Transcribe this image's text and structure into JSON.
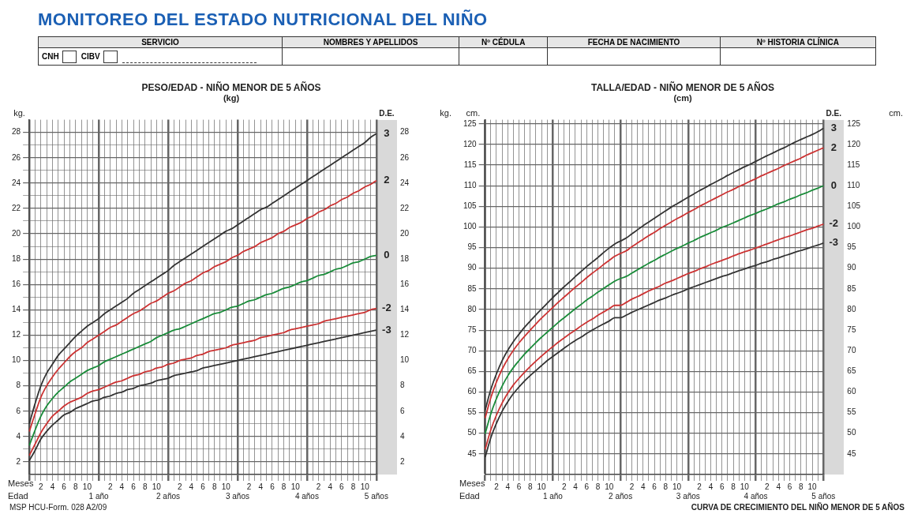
{
  "chart_data": [
    {
      "type": "other",
      "title": "MONITOREO DEL ESTADO NUTRICIONAL DEL NIÑO",
      "annotations": [
        "SERVICIO",
        "CNH",
        "CIBV",
        "NOMBRES Y APELLIDOS",
        "Nº CÉDULA",
        "FECHA DE NACIMIENTO",
        "Nº HISTORIA CLÍNICA"
      ]
    },
    {
      "type": "line",
      "title": "PESO/EDAD - NIÑO MENOR DE 5 AÑOS",
      "subtitle": "(kg)",
      "ylabel": "kg.",
      "y2label": "kg.",
      "annotations": [
        "Meses",
        "Edad",
        "D.E.",
        "MSP HCU-Form. 028 A2/09"
      ],
      "grid": true,
      "legend": false,
      "marker": "none",
      "categories": [
        null,
        null,
        "2",
        null,
        "4",
        null,
        "6",
        null,
        "8",
        null,
        "10",
        null,
        "1 año",
        null,
        "2",
        null,
        "4",
        null,
        "6",
        null,
        "8",
        null,
        "10",
        null,
        "2 años",
        null,
        "2",
        null,
        "4",
        null,
        "6",
        null,
        "8",
        null,
        "10",
        null,
        "3 años",
        null,
        "2",
        null,
        "4",
        null,
        "6",
        null,
        "8",
        null,
        "10",
        null,
        "4 años",
        null,
        "2",
        null,
        "4",
        null,
        "6",
        null,
        "8",
        null,
        "10",
        null,
        "5 años"
      ],
      "ylim": [
        1,
        29
      ],
      "yticks": [
        2,
        {
          "value": 3,
          "label": null
        },
        4,
        {
          "value": 5,
          "label": null
        },
        6,
        {
          "value": 7,
          "label": null
        },
        8,
        {
          "value": 9,
          "label": null
        },
        10,
        {
          "value": 11,
          "label": null
        },
        12,
        {
          "value": 13,
          "label": null
        },
        14,
        {
          "value": 15,
          "label": null
        },
        16,
        {
          "value": 17,
          "label": null
        },
        18,
        {
          "value": 19,
          "label": null
        },
        20,
        {
          "value": 21,
          "label": null
        },
        22,
        {
          "value": 23,
          "label": null
        },
        24,
        {
          "value": 25,
          "label": null
        },
        26,
        {
          "value": 27,
          "label": null
        },
        28
      ],
      "y2lim": [
        1,
        29
      ],
      "y2ticks": [
        2,
        4,
        6,
        8,
        10,
        12,
        14,
        16,
        18,
        20,
        22,
        24,
        26,
        28
      ],
      "series": [
        {
          "name": "3",
          "color": "#333333",
          "values": [
            5.0,
            6.6,
            8.0,
            9.0,
            9.7,
            10.4,
            10.9,
            11.4,
            11.9,
            12.3,
            12.7,
            13.0,
            13.3,
            13.7,
            14.0,
            14.3,
            14.6,
            14.9,
            15.3,
            15.6,
            15.9,
            16.2,
            16.5,
            16.8,
            17.1,
            17.5,
            17.8,
            18.1,
            18.4,
            18.7,
            19.0,
            19.3,
            19.6,
            19.9,
            20.2,
            20.4,
            20.7,
            21.0,
            21.3,
            21.6,
            21.9,
            22.1,
            22.4,
            22.7,
            23.0,
            23.3,
            23.6,
            23.9,
            24.2,
            24.5,
            24.8,
            25.1,
            25.4,
            25.7,
            26.0,
            26.3,
            26.6,
            26.9,
            27.2,
            27.6,
            27.9
          ]
        },
        {
          "name": "2",
          "color": "#cc3333",
          "values": [
            4.4,
            5.8,
            7.1,
            8.0,
            8.7,
            9.3,
            9.8,
            10.3,
            10.7,
            11.0,
            11.4,
            11.7,
            12.0,
            12.3,
            12.6,
            12.8,
            13.1,
            13.4,
            13.7,
            13.9,
            14.2,
            14.5,
            14.7,
            15.0,
            15.3,
            15.5,
            15.8,
            16.1,
            16.3,
            16.6,
            16.9,
            17.1,
            17.4,
            17.6,
            17.8,
            18.1,
            18.3,
            18.6,
            18.8,
            19.0,
            19.3,
            19.5,
            19.7,
            20.0,
            20.2,
            20.5,
            20.7,
            20.9,
            21.2,
            21.4,
            21.7,
            21.9,
            22.2,
            22.4,
            22.7,
            22.9,
            23.2,
            23.4,
            23.7,
            23.9,
            24.2
          ]
        },
        {
          "name": "0",
          "color": "#1a8c3a",
          "values": [
            3.3,
            4.5,
            5.6,
            6.4,
            7.0,
            7.5,
            7.9,
            8.3,
            8.6,
            8.9,
            9.2,
            9.4,
            9.6,
            9.9,
            10.1,
            10.3,
            10.5,
            10.7,
            10.9,
            11.1,
            11.3,
            11.5,
            11.8,
            12.0,
            12.2,
            12.4,
            12.5,
            12.7,
            12.9,
            13.1,
            13.3,
            13.5,
            13.7,
            13.8,
            14.0,
            14.2,
            14.3,
            14.5,
            14.7,
            14.8,
            15.0,
            15.2,
            15.3,
            15.5,
            15.7,
            15.8,
            16.0,
            16.2,
            16.3,
            16.5,
            16.7,
            16.8,
            17.0,
            17.2,
            17.3,
            17.5,
            17.7,
            17.8,
            18.0,
            18.2,
            18.3
          ]
        },
        {
          "name": "-2",
          "color": "#cc3333",
          "values": [
            2.5,
            3.4,
            4.3,
            5.0,
            5.6,
            6.0,
            6.4,
            6.7,
            6.9,
            7.1,
            7.4,
            7.6,
            7.7,
            7.9,
            8.1,
            8.3,
            8.4,
            8.6,
            8.8,
            8.9,
            9.1,
            9.2,
            9.4,
            9.5,
            9.7,
            9.8,
            10.0,
            10.1,
            10.2,
            10.4,
            10.5,
            10.7,
            10.8,
            10.9,
            11.0,
            11.2,
            11.3,
            11.4,
            11.5,
            11.6,
            11.8,
            11.9,
            12.0,
            12.1,
            12.2,
            12.4,
            12.5,
            12.6,
            12.7,
            12.8,
            12.9,
            13.1,
            13.2,
            13.3,
            13.4,
            13.5,
            13.6,
            13.7,
            13.8,
            14.0,
            14.1
          ]
        },
        {
          "name": "-3",
          "color": "#333333",
          "values": [
            2.1,
            2.9,
            3.8,
            4.4,
            4.9,
            5.3,
            5.7,
            5.9,
            6.2,
            6.4,
            6.6,
            6.8,
            6.9,
            7.1,
            7.2,
            7.4,
            7.5,
            7.7,
            7.8,
            8.0,
            8.1,
            8.2,
            8.4,
            8.5,
            8.6,
            8.8,
            8.9,
            9.0,
            9.1,
            9.2,
            9.4,
            9.5,
            9.6,
            9.7,
            9.8,
            9.9,
            10.0,
            10.1,
            10.2,
            10.3,
            10.4,
            10.5,
            10.6,
            10.7,
            10.8,
            10.9,
            11.0,
            11.1,
            11.2,
            11.3,
            11.4,
            11.5,
            11.6,
            11.7,
            11.8,
            11.9,
            12.0,
            12.1,
            12.2,
            12.3,
            12.4
          ]
        }
      ]
    },
    {
      "type": "line",
      "title": "TALLA/EDAD - NIÑO MENOR DE 5 AÑOS",
      "subtitle": "(cm)",
      "ylabel": "cm.",
      "y2label": "cm.",
      "annotations": [
        "Meses",
        "Edad",
        "D.E.",
        "CURVA DE CRECIMIENTO DEL NIÑO MENOR DE 5 AÑOS"
      ],
      "grid": true,
      "legend": false,
      "marker": "none",
      "categories": [
        null,
        null,
        "2",
        null,
        "4",
        null,
        "6",
        null,
        "8",
        null,
        "10",
        null,
        "1 año",
        null,
        "2",
        null,
        "4",
        null,
        "6",
        null,
        "8",
        null,
        "10",
        null,
        "2 años",
        null,
        "2",
        null,
        "4",
        null,
        "6",
        null,
        "8",
        null,
        "10",
        null,
        "3 años",
        null,
        "2",
        null,
        "4",
        null,
        "6",
        null,
        "8",
        null,
        "10",
        null,
        "4 años",
        null,
        "2",
        null,
        "4",
        null,
        "6",
        null,
        "8",
        null,
        "10",
        null,
        "5 años"
      ],
      "ylim": [
        40,
        126
      ],
      "yticks": [
        45,
        50,
        55,
        60,
        65,
        70,
        75,
        80,
        85,
        90,
        95,
        100,
        105,
        110,
        115,
        120,
        125
      ],
      "y2lim": [
        40,
        126
      ],
      "y2ticks": [
        45,
        50,
        55,
        60,
        65,
        70,
        75,
        80,
        85,
        90,
        95,
        100,
        105,
        110,
        115,
        120,
        125
      ],
      "series": [
        {
          "name": "3",
          "color": "#333333",
          "values": [
            55.6,
            60.6,
            64.4,
            67.6,
            70.1,
            72.2,
            74.0,
            75.7,
            77.2,
            78.7,
            80.1,
            81.5,
            82.9,
            84.2,
            85.5,
            86.7,
            88.0,
            89.2,
            90.4,
            91.5,
            92.6,
            93.8,
            94.9,
            95.9,
            96.6,
            97.3,
            98.3,
            99.3,
            100.3,
            101.2,
            102.1,
            103.0,
            103.9,
            104.8,
            105.6,
            106.4,
            107.2,
            108.0,
            108.8,
            109.5,
            110.3,
            111.0,
            111.7,
            112.5,
            113.2,
            113.9,
            114.6,
            115.2,
            115.9,
            116.6,
            117.3,
            117.9,
            118.6,
            119.2,
            119.9,
            120.6,
            121.2,
            121.8,
            122.4,
            123.1,
            123.9
          ]
        },
        {
          "name": "2",
          "color": "#cc3333",
          "values": [
            53.7,
            58.6,
            62.4,
            65.5,
            68.0,
            70.1,
            71.9,
            73.5,
            75.0,
            76.5,
            77.9,
            79.2,
            80.5,
            81.8,
            83.0,
            84.2,
            85.4,
            86.5,
            87.7,
            88.8,
            89.8,
            90.9,
            91.9,
            92.9,
            93.6,
            94.2,
            95.2,
            96.1,
            97.0,
            97.9,
            98.7,
            99.6,
            100.4,
            101.2,
            102.0,
            102.7,
            103.5,
            104.2,
            105.0,
            105.7,
            106.4,
            107.1,
            107.8,
            108.5,
            109.1,
            109.8,
            110.4,
            111.1,
            111.7,
            112.4,
            113.0,
            113.6,
            114.2,
            114.9,
            115.5,
            116.1,
            116.7,
            117.4,
            118.0,
            118.6,
            119.2
          ]
        },
        {
          "name": "0",
          "color": "#1a8c3a",
          "values": [
            49.9,
            54.7,
            58.4,
            61.4,
            63.9,
            65.9,
            67.6,
            69.2,
            70.6,
            72.0,
            73.3,
            74.5,
            75.7,
            76.9,
            78.0,
            79.1,
            80.2,
            81.2,
            82.3,
            83.2,
            84.2,
            85.1,
            86.0,
            86.9,
            87.5,
            88.0,
            88.8,
            89.6,
            90.4,
            91.2,
            91.9,
            92.7,
            93.4,
            94.1,
            94.8,
            95.4,
            96.1,
            96.7,
            97.4,
            98.0,
            98.6,
            99.2,
            99.9,
            100.4,
            101.0,
            101.6,
            102.2,
            102.8,
            103.3,
            103.9,
            104.4,
            105.0,
            105.6,
            106.1,
            106.7,
            107.2,
            107.8,
            108.3,
            108.9,
            109.4,
            110.0
          ]
        },
        {
          "name": "-2",
          "color": "#cc3333",
          "values": [
            46.1,
            50.8,
            54.4,
            57.3,
            59.7,
            61.7,
            63.3,
            64.8,
            66.2,
            67.5,
            68.7,
            69.9,
            71.0,
            72.1,
            73.1,
            74.1,
            75.0,
            76.0,
            76.9,
            77.7,
            78.6,
            79.4,
            80.2,
            81.0,
            81.0,
            81.7,
            82.5,
            83.1,
            83.8,
            84.5,
            85.1,
            85.7,
            86.4,
            86.9,
            87.5,
            88.1,
            88.7,
            89.2,
            89.8,
            90.3,
            90.9,
            91.4,
            91.9,
            92.4,
            93.0,
            93.5,
            94.0,
            94.4,
            94.9,
            95.4,
            95.9,
            96.4,
            96.9,
            97.4,
            97.8,
            98.3,
            98.8,
            99.3,
            99.7,
            100.2,
            100.7
          ]
        },
        {
          "name": "-3",
          "color": "#333333",
          "values": [
            44.2,
            48.9,
            52.4,
            55.3,
            57.6,
            59.6,
            61.2,
            62.7,
            64.0,
            65.2,
            66.4,
            67.6,
            68.6,
            69.6,
            70.6,
            71.6,
            72.5,
            73.3,
            74.2,
            75.0,
            75.8,
            76.5,
            77.2,
            78.0,
            78.0,
            78.6,
            79.3,
            79.9,
            80.5,
            81.1,
            81.7,
            82.3,
            82.8,
            83.4,
            83.9,
            84.4,
            85.0,
            85.5,
            86.0,
            86.5,
            87.0,
            87.5,
            88.0,
            88.4,
            88.9,
            89.4,
            89.8,
            90.3,
            90.7,
            91.2,
            91.6,
            92.1,
            92.5,
            93.0,
            93.4,
            93.9,
            94.3,
            94.7,
            95.2,
            95.6,
            96.1
          ]
        }
      ]
    }
  ]
}
